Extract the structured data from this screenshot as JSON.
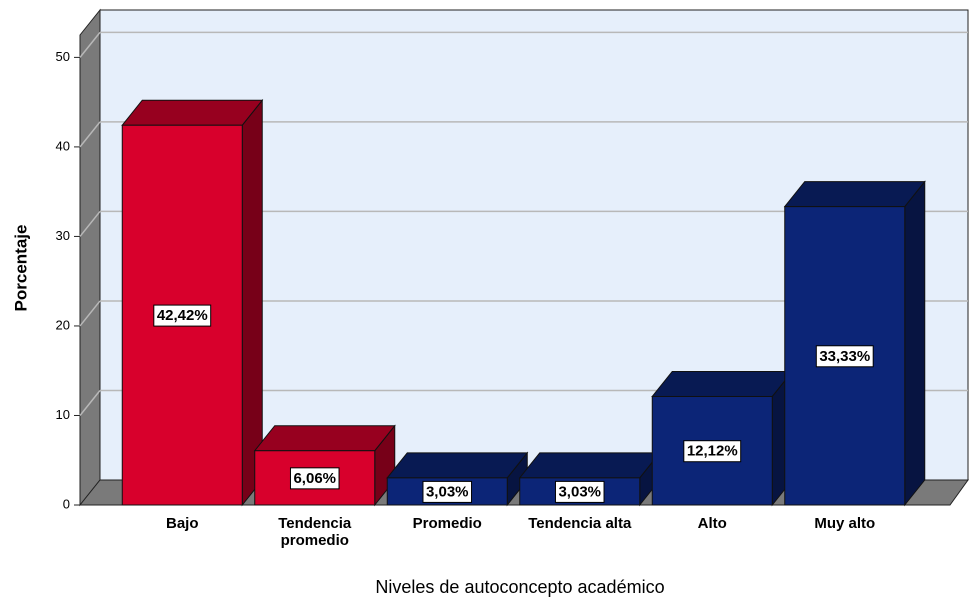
{
  "chart_data": {
    "type": "bar3d",
    "categories": [
      "Bajo",
      "Tendencia promedio",
      "Promedio",
      "Tendencia alta",
      "Alto",
      "Muy alto"
    ],
    "values": [
      42.42,
      6.06,
      3.03,
      3.03,
      12.12,
      33.33
    ],
    "value_labels": [
      "42,42%",
      "6,06%",
      "3,03%",
      "3,03%",
      "12,12%",
      "33,33%"
    ],
    "colors": [
      "#d8002c",
      "#d8002c",
      "#0c2577",
      "#0c2577",
      "#0c2577",
      "#0c2577"
    ],
    "ylim": [
      0,
      52.5
    ],
    "yticks": [
      0,
      10,
      20,
      30,
      40,
      50
    ],
    "grid": true,
    "ylabel": "Porcentaje",
    "xlabel": "Niveles de autoconcepto académico"
  }
}
